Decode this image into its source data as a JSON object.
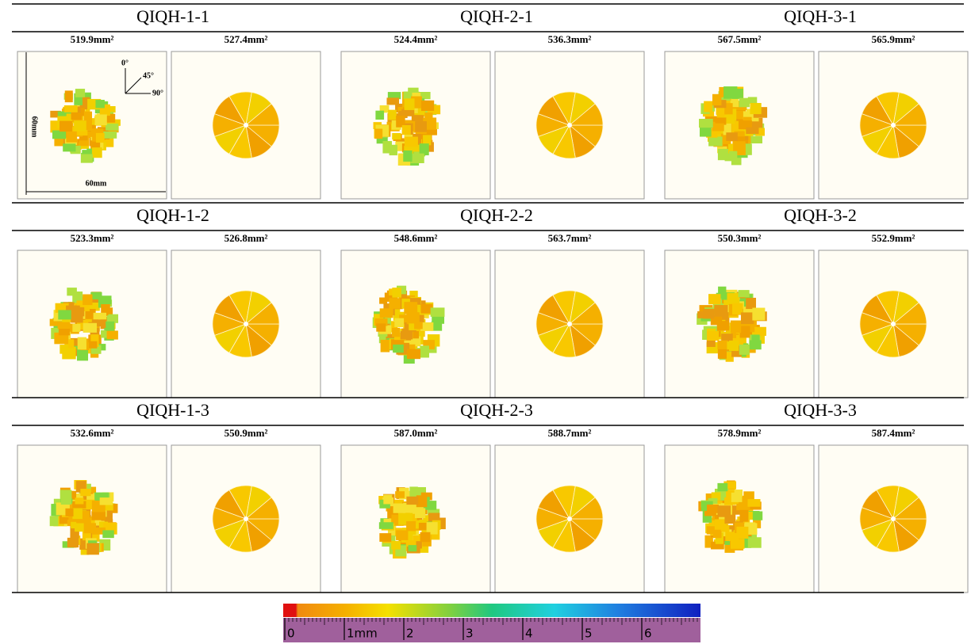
{
  "panels": [
    {
      "title": "QIQH-1-1",
      "areas": [
        "519.9mm²",
        "527.4mm²"
      ]
    },
    {
      "title": "QIQH-2-1",
      "areas": [
        "524.4mm²",
        "536.3mm²"
      ]
    },
    {
      "title": "QIQH-3-1",
      "areas": [
        "567.5mm²",
        "565.9mm²"
      ]
    },
    {
      "title": "QIQH-1-2",
      "areas": [
        "523.3mm²",
        "526.8mm²"
      ]
    },
    {
      "title": "QIQH-2-2",
      "areas": [
        "548.6mm²",
        "563.7mm²"
      ]
    },
    {
      "title": "QIQH-3-2",
      "areas": [
        "550.3mm²",
        "552.9mm²"
      ]
    },
    {
      "title": "QIQH-1-3",
      "areas": [
        "532.6mm²",
        "550.9mm²"
      ]
    },
    {
      "title": "QIQH-2-3",
      "areas": [
        "587.0mm²",
        "588.7mm²"
      ]
    },
    {
      "title": "QIQH-3-3",
      "areas": [
        "578.9mm²",
        "587.4mm²"
      ]
    }
  ],
  "annotations": {
    "angles": [
      "0°",
      "45°",
      "90°"
    ],
    "height": "60mm",
    "width": "60mm"
  },
  "scale": {
    "ticks": [
      "0",
      "1mm",
      "2",
      "3",
      "4",
      "5",
      "6"
    ]
  }
}
